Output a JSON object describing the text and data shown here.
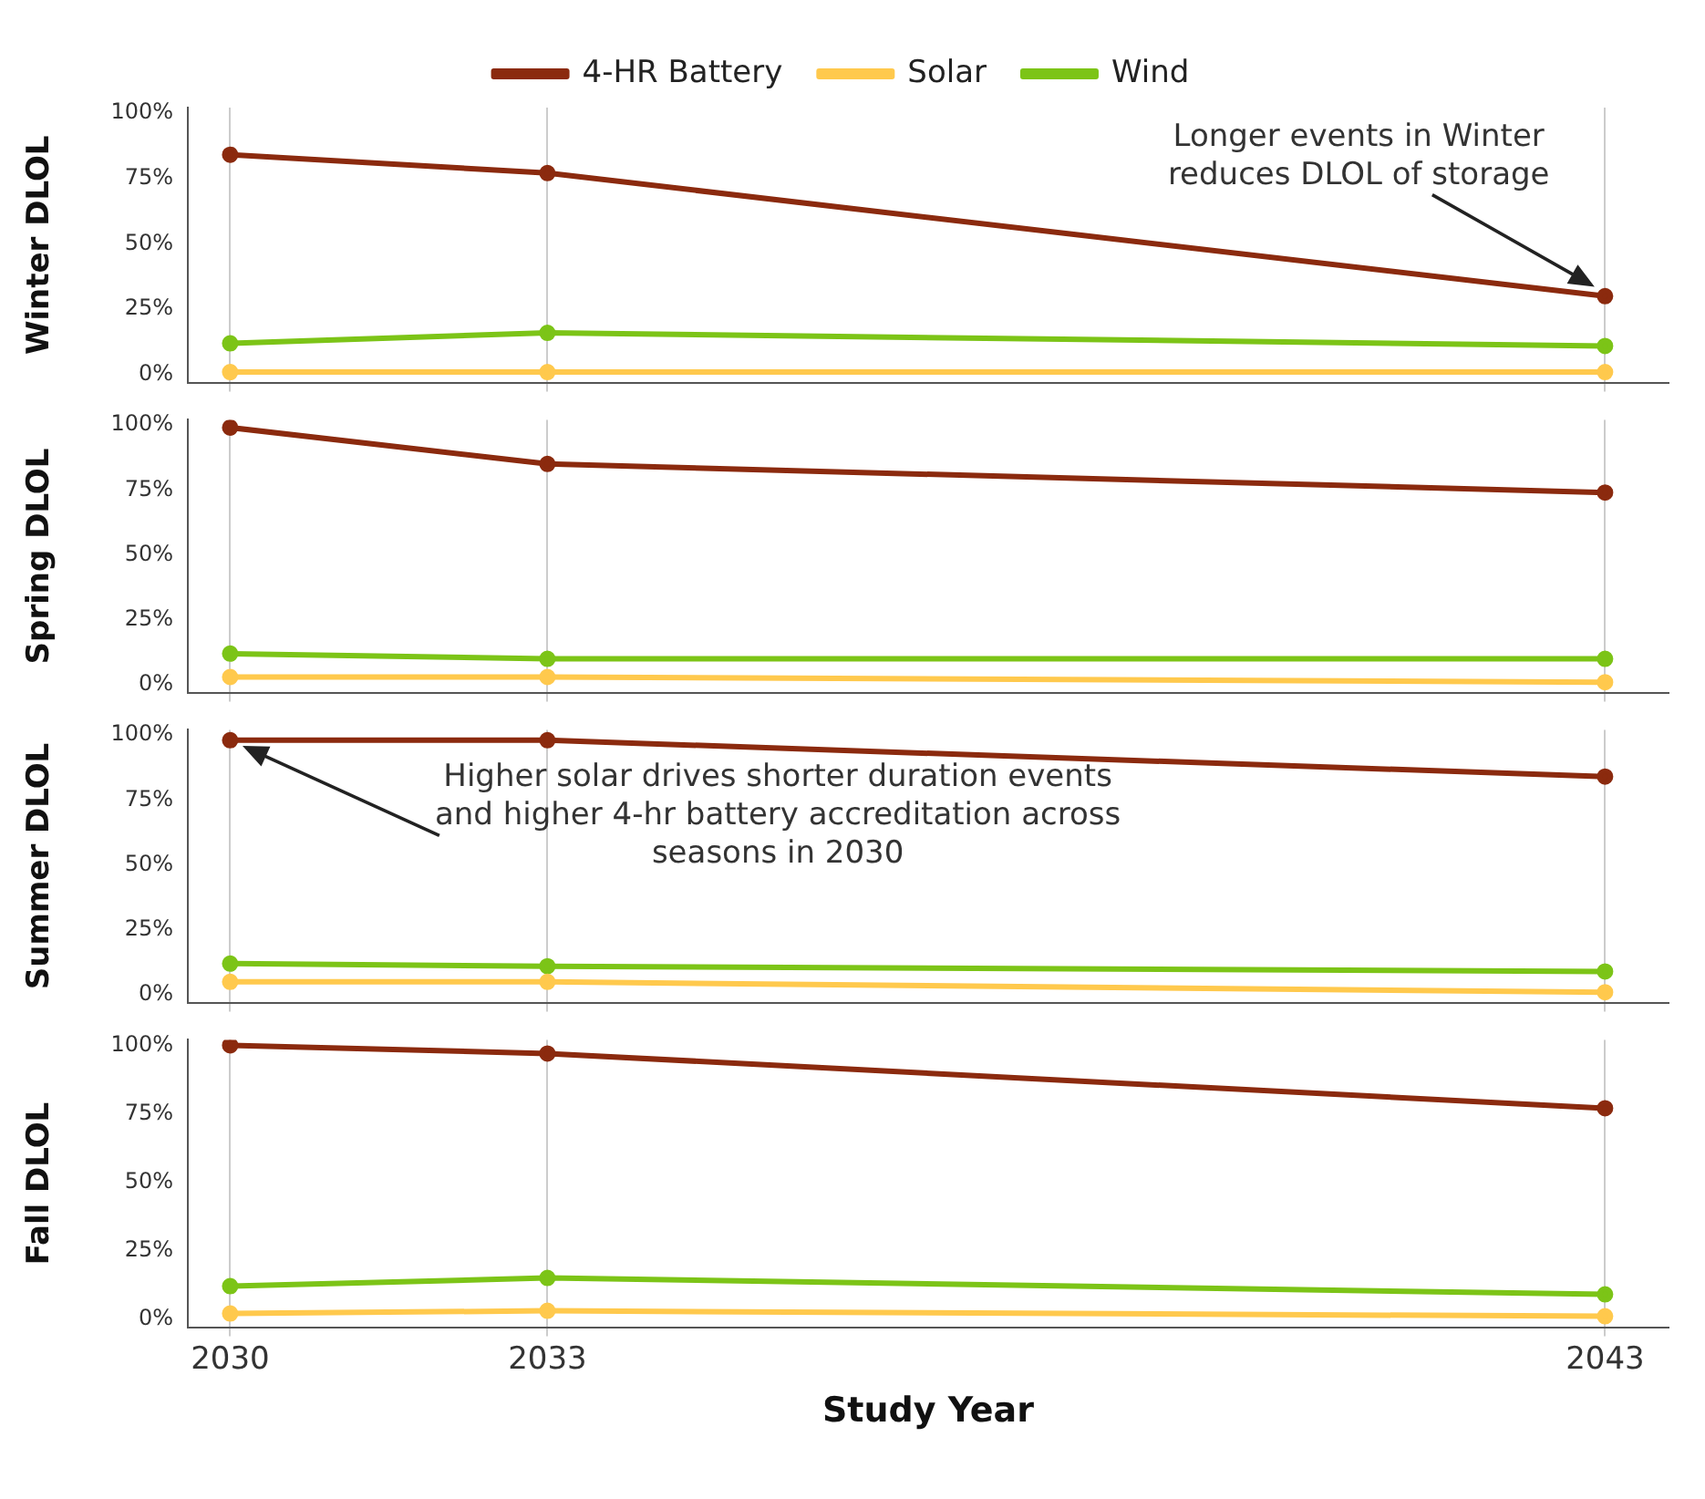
{
  "chart_data": [
    {
      "type": "line",
      "ylabel": "Winter DLOL",
      "x": [
        2030,
        2033,
        2043
      ],
      "xlim": [
        2029.6,
        2043.6
      ],
      "xticks": [
        2030,
        2033,
        2043
      ],
      "ylim": [
        -3,
        102
      ],
      "yticks": [
        {
          "value": 0,
          "label": "0%"
        },
        {
          "value": 25,
          "label": "25%"
        },
        {
          "value": 50,
          "label": "50%"
        },
        {
          "value": 75,
          "label": "75%"
        },
        {
          "value": 100,
          "label": "100%"
        }
      ],
      "grid": "x",
      "legend": "top",
      "marker": "circle",
      "tick_labels": "y",
      "series": [
        {
          "name": "4-HR Battery",
          "color": "#8b2a0e",
          "values": [
            84,
            77,
            30
          ]
        },
        {
          "name": "Solar",
          "color": "#ffc94d",
          "values": [
            1,
            1,
            1
          ]
        },
        {
          "name": "Wind",
          "color": "#7cc417",
          "values": [
            12,
            16,
            11
          ]
        }
      ],
      "annotations": [
        "Longer events in Winter reduces DLOL of storage"
      ]
    },
    {
      "type": "line",
      "ylabel": "Spring DLOL",
      "x": [
        2030,
        2033,
        2043
      ],
      "xlim": [
        2029.6,
        2043.6
      ],
      "xticks": [
        2030,
        2033,
        2043
      ],
      "ylim": [
        -3,
        102
      ],
      "yticks": [
        {
          "value": 0,
          "label": "0%"
        },
        {
          "value": 25,
          "label": "25%"
        },
        {
          "value": 50,
          "label": "50%"
        },
        {
          "value": 75,
          "label": "75%"
        },
        {
          "value": 100,
          "label": "100%"
        }
      ],
      "grid": "x",
      "marker": "circle",
      "tick_labels": "y",
      "series": [
        {
          "color": "#8b2a0e",
          "values": [
            99,
            85,
            74
          ]
        },
        {
          "color": "#ffc94d",
          "values": [
            3,
            3,
            1
          ]
        },
        {
          "color": "#7cc417",
          "values": [
            12,
            10,
            10
          ]
        }
      ]
    },
    {
      "type": "line",
      "ylabel": "Summer DLOL",
      "x": [
        2030,
        2033,
        2043
      ],
      "xlim": [
        2029.6,
        2043.6
      ],
      "xticks": [
        2030,
        2033,
        2043
      ],
      "ylim": [
        -3,
        102
      ],
      "yticks": [
        {
          "value": 0,
          "label": "0%"
        },
        {
          "value": 25,
          "label": "25%"
        },
        {
          "value": 50,
          "label": "50%"
        },
        {
          "value": 75,
          "label": "75%"
        },
        {
          "value": 100,
          "label": "100%"
        }
      ],
      "grid": "x",
      "marker": "circle",
      "tick_labels": "y",
      "series": [
        {
          "color": "#8b2a0e",
          "values": [
            98,
            98,
            84
          ]
        },
        {
          "color": "#ffc94d",
          "values": [
            5,
            5,
            1
          ]
        },
        {
          "color": "#7cc417",
          "values": [
            12,
            11,
            9
          ]
        }
      ],
      "annotations": [
        "Higher solar drives shorter duration events and higher 4-hr battery accreditation across seasons in 2030"
      ]
    },
    {
      "type": "line",
      "ylabel": "Fall DLOL",
      "xlabel": "Study Year",
      "x": [
        2030,
        2033,
        2043
      ],
      "xlim": [
        2029.6,
        2043.6
      ],
      "xticks": [
        2030,
        2033,
        2043
      ],
      "ylim": [
        -3,
        102
      ],
      "yticks": [
        {
          "value": 0,
          "label": "0%"
        },
        {
          "value": 25,
          "label": "25%"
        },
        {
          "value": 50,
          "label": "50%"
        },
        {
          "value": 75,
          "label": "75%"
        },
        {
          "value": 100,
          "label": "100%"
        }
      ],
      "grid": "x",
      "marker": "circle",
      "series": [
        {
          "color": "#8b2a0e",
          "values": [
            100,
            97,
            77
          ]
        },
        {
          "color": "#ffc94d",
          "values": [
            2,
            3,
            1
          ]
        },
        {
          "color": "#7cc417",
          "values": [
            12,
            15,
            9
          ]
        }
      ]
    }
  ]
}
